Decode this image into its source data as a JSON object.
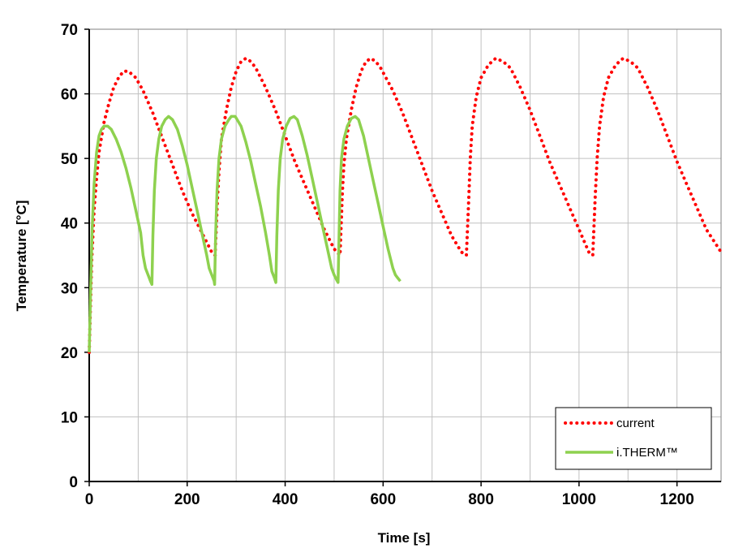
{
  "chart_data": {
    "type": "line",
    "xlabel": "Time [s]",
    "ylabel": "Temperature [°C]",
    "xlim": [
      0,
      1290
    ],
    "ylim": [
      0,
      70
    ],
    "xticks": [
      0,
      200,
      400,
      600,
      800,
      1000,
      1200
    ],
    "xtick_labels": [
      "0",
      "200",
      "400",
      "600",
      "800",
      "1000",
      "1200"
    ],
    "yticks": [
      0,
      10,
      20,
      30,
      40,
      50,
      60,
      70
    ],
    "ytick_labels": [
      "0",
      "10",
      "20",
      "30",
      "40",
      "50",
      "60",
      "70"
    ],
    "x_grid_step": 100,
    "y_grid_step": 10,
    "grid": true,
    "legend_position": "bottom-right",
    "series": [
      {
        "name": "current",
        "color": "#ff0000",
        "style": "dotted",
        "x": [
          0,
          5,
          10,
          15,
          20,
          30,
          40,
          50,
          60,
          70,
          80,
          95,
          110,
          130,
          150,
          170,
          190,
          210,
          230,
          250,
          257,
          262,
          265,
          270,
          280,
          290,
          300,
          310,
          320,
          330,
          340,
          360,
          380,
          400,
          420,
          440,
          460,
          480,
          500,
          512,
          517,
          520,
          525,
          535,
          545,
          555,
          565,
          575,
          585,
          595,
          620,
          640,
          660,
          680,
          700,
          720,
          740,
          760,
          770,
          775,
          778,
          782,
          790,
          800,
          815,
          830,
          845,
          860,
          880,
          900,
          920,
          940,
          960,
          980,
          1000,
          1020,
          1028,
          1033,
          1037,
          1042,
          1050,
          1060,
          1075,
          1090,
          1105,
          1120,
          1140,
          1160,
          1180,
          1200,
          1220,
          1240,
          1260,
          1290
        ],
        "y": [
          20,
          34,
          42,
          47,
          51,
          55.5,
          58.5,
          61,
          62.5,
          63.5,
          63.5,
          62.5,
          60.5,
          57,
          53,
          49,
          45,
          41.5,
          38.5,
          35.5,
          35,
          44,
          48,
          53,
          57.5,
          61,
          63.5,
          65,
          65.5,
          65,
          64,
          61,
          57.5,
          53.5,
          49.5,
          46,
          42.5,
          39,
          36,
          35,
          45,
          49,
          53,
          57.5,
          61,
          63.5,
          65,
          65.5,
          65,
          64,
          60.5,
          57,
          53,
          49,
          45,
          41.5,
          38,
          35.5,
          35,
          44,
          50,
          55,
          59.5,
          62.5,
          64.5,
          65.5,
          65,
          64,
          61,
          57.5,
          53.5,
          49.5,
          46,
          42.5,
          39,
          35.5,
          35,
          44,
          50,
          55,
          59.5,
          62.5,
          64.5,
          65.5,
          65,
          64,
          61,
          57.5,
          53.5,
          49.5,
          46,
          42.5,
          39,
          35.5
        ]
      },
      {
        "name": "i.THERM™",
        "color": "#8ed14f",
        "style": "solid",
        "x": [
          0,
          3,
          6,
          10,
          15,
          20,
          25,
          30,
          38,
          45,
          55,
          65,
          75,
          85,
          95,
          105,
          110,
          115,
          120,
          125,
          128,
          130,
          133,
          137,
          142,
          148,
          155,
          162,
          170,
          180,
          190,
          200,
          210,
          220,
          230,
          240,
          245,
          250,
          255,
          256,
          258,
          261,
          265,
          270,
          277,
          285,
          290,
          298,
          310,
          320,
          330,
          340,
          350,
          360,
          368,
          373,
          378,
          381,
          383,
          386,
          390,
          395,
          402,
          410,
          418,
          425,
          435,
          445,
          455,
          465,
          475,
          485,
          495,
          500,
          505,
          508,
          510,
          512,
          515,
          520,
          527,
          535,
          543,
          550,
          560,
          570,
          580,
          590,
          600,
          610,
          615,
          620,
          625,
          630,
          635
        ],
        "y": [
          20,
          30,
          39,
          46,
          51,
          53.5,
          54.5,
          55,
          55,
          54.5,
          53,
          51,
          48.5,
          45.5,
          42,
          38.5,
          35,
          33,
          32,
          31,
          30.5,
          38,
          45,
          50,
          53,
          55,
          56,
          56.5,
          56,
          54.5,
          52,
          49,
          45.5,
          42,
          38.5,
          35,
          33,
          32,
          31,
          30.5,
          38,
          45,
          50,
          53,
          55,
          56,
          56.5,
          56.5,
          55,
          52.5,
          49.5,
          46,
          42.5,
          38.5,
          35,
          32.5,
          31.5,
          30.8,
          38,
          45,
          50,
          53,
          55,
          56.2,
          56.5,
          56,
          53.5,
          50.5,
          47,
          43.5,
          40,
          36.5,
          33,
          32,
          31.2,
          30.8,
          38,
          45,
          50,
          53,
          55,
          56.2,
          56.5,
          56,
          53.5,
          50,
          46.5,
          43,
          39.5,
          36,
          34.5,
          33,
          32,
          31.5,
          31
        ]
      }
    ]
  }
}
